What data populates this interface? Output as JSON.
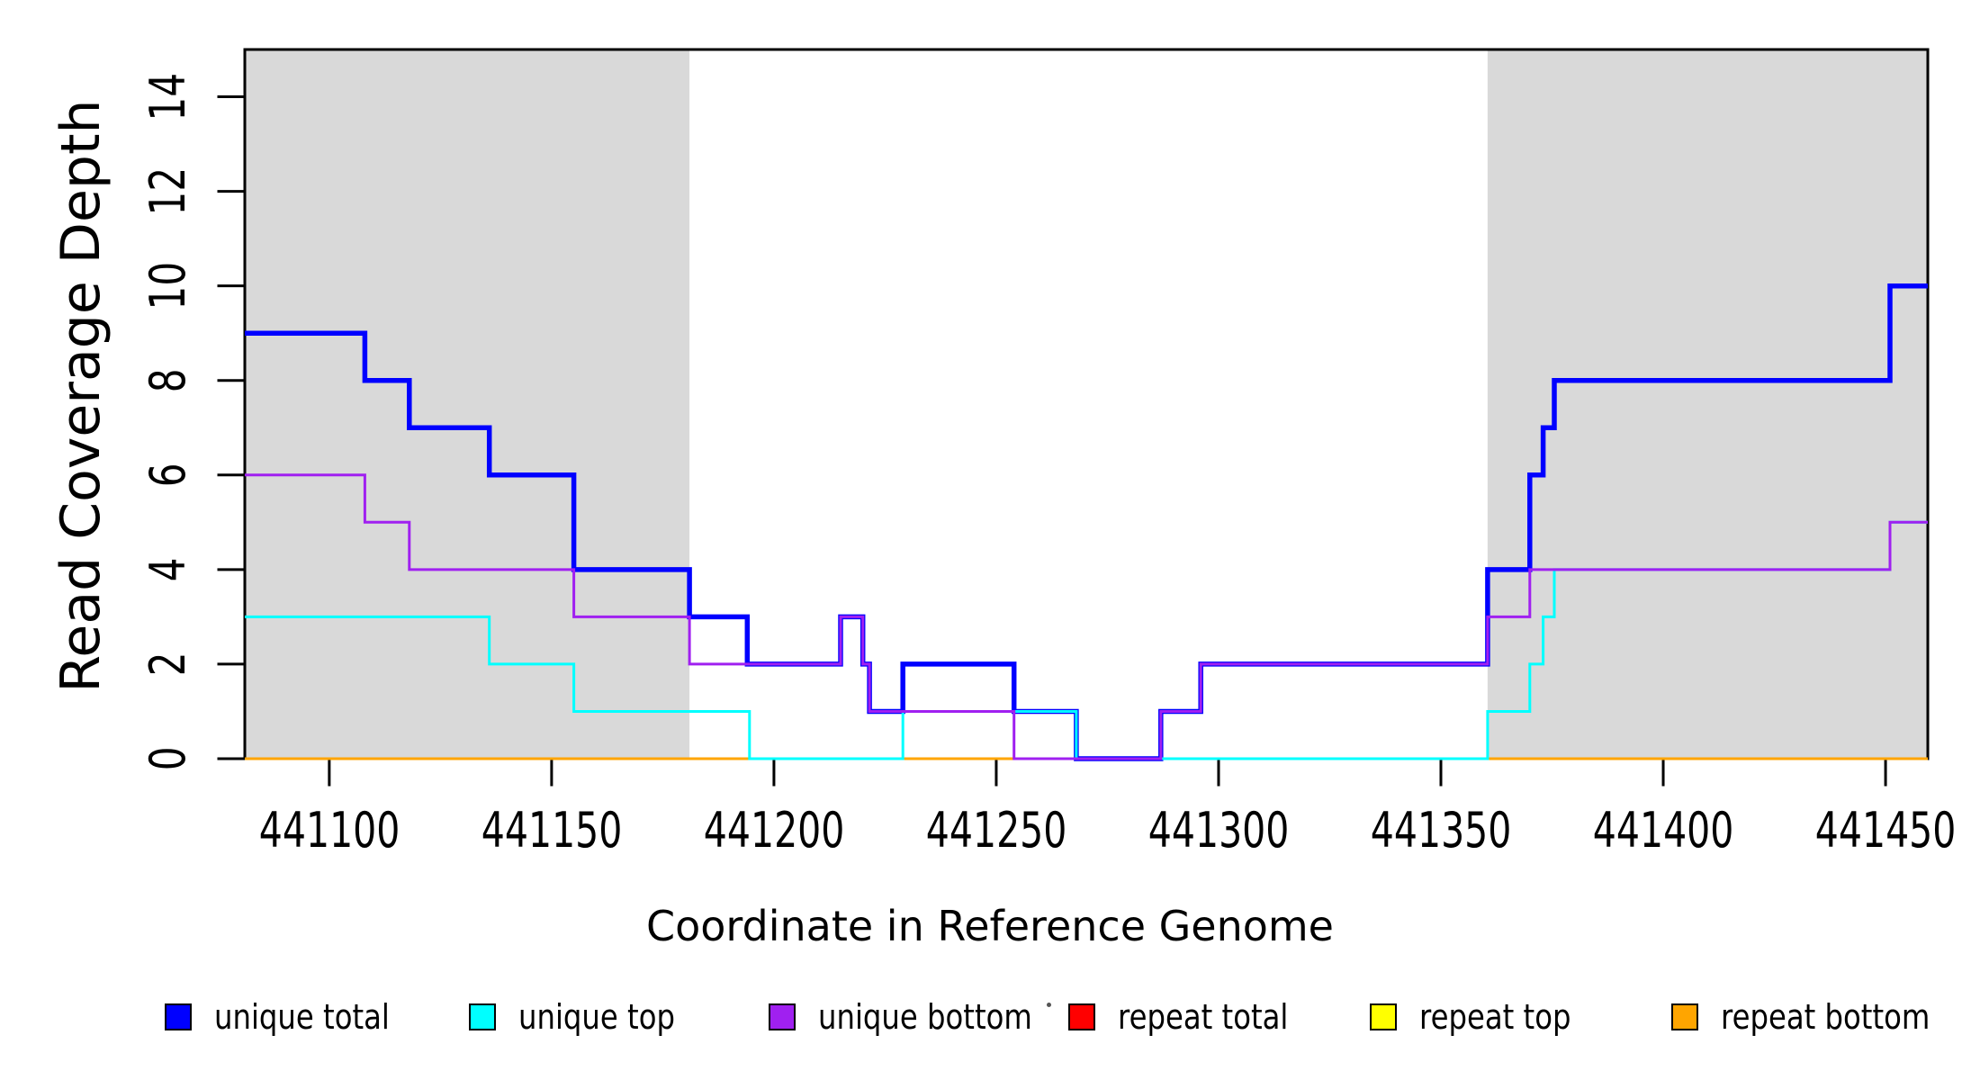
{
  "chart_data": {
    "type": "line",
    "step": true,
    "title": "",
    "xlabel": "Coordinate in Reference Genome",
    "ylabel": "Read Coverage Depth",
    "xlim": [
      441081,
      441459.5
    ],
    "ylim": [
      0,
      15
    ],
    "x_ticks": [
      441100,
      441150,
      441200,
      441250,
      441300,
      441350,
      441400,
      441450
    ],
    "y_ticks": [
      0,
      2,
      4,
      6,
      8,
      10,
      12,
      14
    ],
    "grid": false,
    "legend_position": "bottom",
    "background_color": "#FFFFFF",
    "shade_color": "#D9D9D9",
    "axis_color": "#000000",
    "shaded_regions": [
      {
        "from": 441081,
        "to": 441181
      },
      {
        "from": 441360.5,
        "to": 441459.5
      }
    ],
    "draw_order": [
      "repeat total",
      "repeat top",
      "repeat bottom",
      "unique total",
      "unique top",
      "unique bottom"
    ],
    "series": [
      {
        "name": "unique total",
        "color": "#0000FF",
        "line_width": 5.5,
        "steps": [
          [
            441081,
            9
          ],
          [
            441108,
            8
          ],
          [
            441118,
            7
          ],
          [
            441136,
            6
          ],
          [
            441155,
            4
          ],
          [
            441181,
            3
          ],
          [
            441194,
            2
          ],
          [
            441215,
            3
          ],
          [
            441220,
            2
          ],
          [
            441221.5,
            1
          ],
          [
            441229,
            2
          ],
          [
            441254,
            1
          ],
          [
            441268,
            0
          ],
          [
            441287,
            1
          ],
          [
            441296,
            2
          ],
          [
            441360.5,
            4
          ],
          [
            441370,
            6
          ],
          [
            441373,
            7
          ],
          [
            441375.5,
            8
          ],
          [
            441451,
            10
          ]
        ]
      },
      {
        "name": "unique top",
        "color": "#00FFFF",
        "line_width": 3,
        "steps": [
          [
            441081,
            3
          ],
          [
            441136,
            2
          ],
          [
            441155,
            1
          ],
          [
            441194.5,
            0
          ],
          [
            441229,
            1
          ],
          [
            441268,
            0
          ],
          [
            441360.5,
            1
          ],
          [
            441370,
            2
          ],
          [
            441373,
            3
          ],
          [
            441375.5,
            4
          ],
          [
            441451,
            5
          ]
        ]
      },
      {
        "name": "unique bottom",
        "color": "#A020F0",
        "line_width": 3,
        "steps": [
          [
            441081,
            6
          ],
          [
            441108,
            5
          ],
          [
            441118,
            4
          ],
          [
            441155,
            3
          ],
          [
            441181,
            2
          ],
          [
            441215,
            3
          ],
          [
            441220,
            2
          ],
          [
            441221.5,
            1
          ],
          [
            441254,
            0
          ],
          [
            441287,
            1
          ],
          [
            441296,
            2
          ],
          [
            441360.5,
            3
          ],
          [
            441370,
            4
          ],
          [
            441451,
            5
          ]
        ]
      },
      {
        "name": "repeat total",
        "color": "#FF0000",
        "line_width": 3,
        "steps": [
          [
            441081,
            0
          ]
        ]
      },
      {
        "name": "repeat top",
        "color": "#FFFF00",
        "line_width": 3,
        "steps": [
          [
            441081,
            0
          ]
        ]
      },
      {
        "name": "repeat bottom",
        "color": "#FFA500",
        "line_width": 3,
        "steps": [
          [
            441081,
            0
          ]
        ]
      }
    ]
  },
  "legend": {
    "items": [
      {
        "label": "unique total",
        "color": "#0000FF"
      },
      {
        "label": "unique top",
        "color": "#00FFFF"
      },
      {
        "label": "unique bottom",
        "color": "#A020F0"
      },
      {
        "label": "repeat total",
        "color": "#FF0000"
      },
      {
        "label": "repeat top",
        "color": "#FFFF00"
      },
      {
        "label": "repeat bottom",
        "color": "#FFA500"
      }
    ]
  }
}
